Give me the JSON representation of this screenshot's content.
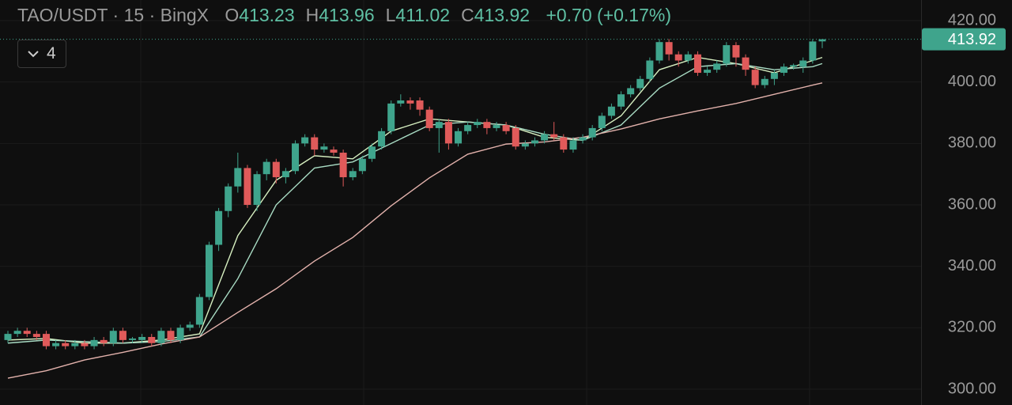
{
  "chart_data": {
    "type": "candlestick",
    "title": "TAO/USDT · 15 · BingX",
    "ohlc_legend": [
      {
        "key": "O",
        "value": 413.23
      },
      {
        "key": "H",
        "value": 413.96
      },
      {
        "key": "L",
        "value": 411.02
      },
      {
        "key": "C",
        "value": 413.92
      }
    ],
    "change": {
      "value": 0.7,
      "label": "+0.70"
    },
    "change_percent": {
      "value": 0.17,
      "label": "(+0.17%)"
    },
    "indicator_count": 4,
    "last_price": 413.92,
    "up_color": "#3fa48c",
    "down_color": "#e05a5a",
    "open": [
      316,
      318,
      319,
      318,
      318,
      314,
      315,
      314,
      315,
      314,
      316,
      315,
      319,
      316,
      316,
      317,
      315,
      319,
      316,
      320,
      321,
      330,
      347,
      358,
      366,
      372,
      360,
      370,
      374,
      369,
      371,
      380,
      382,
      378,
      378,
      377,
      369,
      371,
      375,
      379,
      384,
      393,
      394,
      394,
      391,
      385,
      387,
      380,
      384,
      386,
      387,
      385,
      386,
      385,
      379,
      380,
      381,
      383,
      382,
      378,
      381,
      382,
      385,
      389,
      392,
      396,
      398,
      401,
      407,
      413,
      409,
      407,
      409,
      403,
      404,
      406,
      412,
      408,
      404,
      399,
      401,
      403,
      405,
      405,
      407,
      413.23
    ],
    "high": [
      319,
      320,
      320,
      319,
      319,
      316,
      316,
      316,
      316,
      317,
      317,
      320,
      320,
      317,
      318,
      318,
      320,
      320,
      321,
      322,
      331,
      348,
      359,
      367,
      377,
      373,
      371,
      375,
      375,
      372,
      381,
      383,
      383,
      380,
      379,
      378,
      372,
      376,
      380,
      385,
      394,
      396,
      395,
      395,
      392,
      388,
      388,
      385,
      387,
      388,
      388,
      387,
      387,
      386,
      381,
      382,
      384,
      387,
      383,
      382,
      383,
      386,
      390,
      393,
      397,
      399,
      402,
      408,
      414,
      414,
      410,
      410,
      410,
      405,
      407,
      413,
      413,
      409,
      405,
      402,
      404,
      406,
      406,
      408,
      414,
      413.96
    ],
    "low": [
      315,
      317,
      317,
      316,
      313,
      313,
      313,
      313,
      313,
      313,
      314,
      314,
      315,
      315,
      315,
      314,
      314,
      315,
      315,
      319,
      320,
      329,
      345,
      356,
      364,
      359,
      358,
      368,
      367,
      367,
      370,
      379,
      376,
      377,
      376,
      366,
      368,
      370,
      374,
      378,
      383,
      392,
      391,
      389,
      384,
      377,
      378,
      379,
      383,
      385,
      383,
      384,
      383,
      378,
      378,
      379,
      380,
      381,
      377,
      377,
      380,
      381,
      384,
      388,
      391,
      395,
      397,
      400,
      406,
      407,
      405,
      406,
      402,
      402,
      403,
      405,
      405,
      402,
      398,
      398,
      399,
      402,
      404,
      403,
      406,
      411.02
    ],
    "close": [
      318,
      319,
      318,
      317,
      314,
      315,
      314,
      315,
      314,
      316,
      315,
      319,
      316,
      316.5,
      317,
      315,
      319,
      316,
      320,
      321,
      330,
      347,
      358,
      366,
      372,
      360,
      370,
      374,
      369,
      371,
      380,
      382,
      378,
      379,
      377,
      369,
      371,
      375,
      379,
      384,
      393,
      394,
      393,
      391,
      385,
      387,
      380,
      384,
      386,
      387,
      385,
      386,
      384,
      379,
      380,
      381,
      383,
      382,
      378,
      381,
      382,
      385,
      389,
      392,
      396,
      398,
      401,
      407,
      413,
      409,
      407,
      409,
      403,
      404,
      406,
      412,
      408,
      404,
      399,
      401,
      403,
      405,
      405.5,
      407,
      413.2,
      413.92
    ],
    "lines": [
      {
        "color": "#d6efc0",
        "x": [
          0,
          4,
          8,
          12,
          16,
          20,
          24,
          28,
          32,
          36,
          40,
          44,
          48,
          52,
          56,
          60,
          64,
          68,
          72,
          76,
          80,
          84,
          85
        ],
        "values": [
          316,
          316.5,
          315,
          315,
          316,
          318,
          350,
          368,
          376,
          375,
          384,
          388,
          387,
          386,
          382,
          381,
          389,
          404,
          408,
          406,
          403,
          407,
          408
        ]
      },
      {
        "color": "#a9dcc4",
        "x": [
          0,
          4,
          8,
          12,
          16,
          20,
          24,
          28,
          32,
          36,
          40,
          44,
          48,
          52,
          56,
          60,
          64,
          68,
          72,
          76,
          80,
          84,
          85
        ],
        "values": [
          315,
          316,
          315.5,
          315,
          315.5,
          317,
          336,
          360,
          372,
          374,
          380,
          386,
          387,
          386,
          383,
          381,
          386,
          398,
          405,
          406,
          404,
          405,
          406
        ]
      },
      {
        "color": "#e3b2ac",
        "x": [
          0,
          4,
          8,
          12,
          16,
          20,
          24,
          28,
          32,
          36,
          40,
          44,
          48,
          52,
          56,
          60,
          64,
          68,
          72,
          76,
          80,
          84,
          85
        ],
        "values": [
          303.6,
          306,
          309.5,
          312,
          314.7,
          317,
          325,
          332.7,
          341.7,
          349.4,
          359.7,
          368.8,
          376.5,
          379.8,
          380.5,
          382,
          384.7,
          388,
          390.6,
          393,
          396,
          399,
          399.7
        ]
      }
    ],
    "ylim": [
      294.85,
      426.7
    ],
    "yticks": [
      {
        "value": 300,
        "label": "300.00"
      },
      {
        "value": 320,
        "label": "320.00"
      },
      {
        "value": 340,
        "label": "340.00"
      },
      {
        "value": 360,
        "label": "360.00"
      },
      {
        "value": 380,
        "label": "380.00"
      },
      {
        "value": 400,
        "label": "400.00"
      },
      {
        "value": 420,
        "label": "420.00"
      }
    ],
    "grid": true
  }
}
